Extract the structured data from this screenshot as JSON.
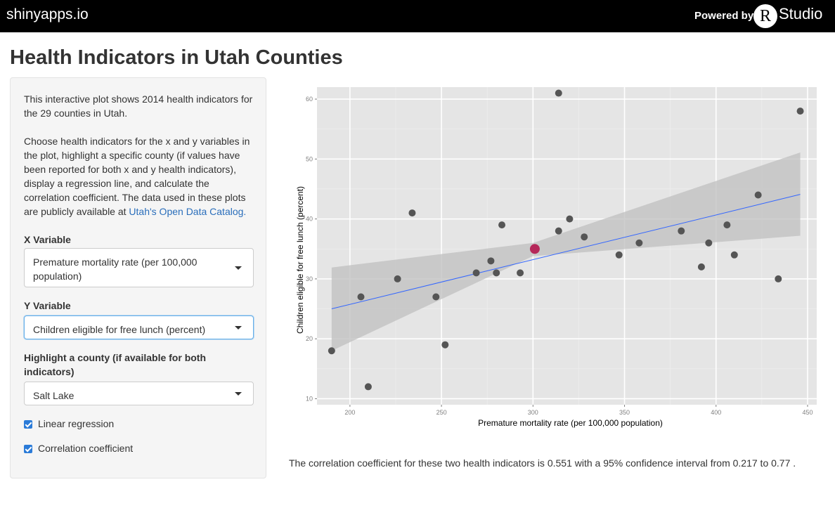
{
  "topbar": {
    "brand": "shinyapps.io",
    "powered_by": "Powered by",
    "logo_letter": "R",
    "logo_word": "Studio"
  },
  "page": {
    "title": "Health Indicators in Utah Counties"
  },
  "sidebar": {
    "intro": "This interactive plot shows 2014 health indicators for the 29 counties in Utah.",
    "description": "Choose health indicators for the x and y variables in the plot, highlight a specific county (if values have been reported for both x and y health indicators), display a regression line, and calculate the correlation coefficient. The data used in these plots are publicly available at",
    "link_text": "Utah's Open Data Catalog.",
    "x_label": "X Variable",
    "x_value": "Premature mortality rate (per 100,000 population)",
    "y_label": "Y Variable",
    "y_value": "Children eligible for free lunch (percent)",
    "county_label": "Highlight a county (if available for both indicators)",
    "county_value": "Salt Lake",
    "regression_label": "Linear regression",
    "regression_checked": true,
    "correlation_label": "Correlation coefficient",
    "correlation_checked": true
  },
  "colors": {
    "checkbox": "#2b7bd8",
    "link": "#2a6ebb",
    "panel_bg": "#e5e5e5",
    "point": "#555555",
    "highlight": "#b5285a",
    "regression_line": "#3366ff",
    "ci_band": "#bfbfbf"
  },
  "chart_data": {
    "type": "scatter",
    "xlabel": "Premature mortality rate (per 100,000 population)",
    "ylabel": "Children eligible for free lunch (percent)",
    "xlim": [
      182,
      455
    ],
    "ylim": [
      9,
      62
    ],
    "x_ticks": [
      200,
      250,
      300,
      350,
      400,
      450
    ],
    "y_ticks": [
      10,
      20,
      30,
      40,
      50,
      60
    ],
    "grid": true,
    "points": [
      {
        "x": 190,
        "y": 18
      },
      {
        "x": 206,
        "y": 27
      },
      {
        "x": 210,
        "y": 12
      },
      {
        "x": 226,
        "y": 30
      },
      {
        "x": 234,
        "y": 41
      },
      {
        "x": 247,
        "y": 27
      },
      {
        "x": 252,
        "y": 19
      },
      {
        "x": 269,
        "y": 31
      },
      {
        "x": 277,
        "y": 33
      },
      {
        "x": 280,
        "y": 31
      },
      {
        "x": 283,
        "y": 39
      },
      {
        "x": 293,
        "y": 31
      },
      {
        "x": 314,
        "y": 61
      },
      {
        "x": 314,
        "y": 38
      },
      {
        "x": 320,
        "y": 40
      },
      {
        "x": 328,
        "y": 37
      },
      {
        "x": 347,
        "y": 34
      },
      {
        "x": 358,
        "y": 36
      },
      {
        "x": 381,
        "y": 38
      },
      {
        "x": 392,
        "y": 32
      },
      {
        "x": 396,
        "y": 36
      },
      {
        "x": 406,
        "y": 39
      },
      {
        "x": 410,
        "y": 34
      },
      {
        "x": 423,
        "y": 44
      },
      {
        "x": 434,
        "y": 30
      },
      {
        "x": 446,
        "y": 58
      }
    ],
    "highlight_point": {
      "x": 301,
      "y": 35
    },
    "regression": {
      "x": [
        190,
        446
      ],
      "y": [
        25,
        44.1
      ]
    },
    "confidence_band": {
      "x": [
        190,
        300,
        446
      ],
      "upper": [
        31.9,
        36.0,
        51.1
      ],
      "lower": [
        18.0,
        33.8,
        37.2
      ]
    }
  },
  "result": {
    "correlation_text": "The correlation coefficient for these two health indicators is 0.551 with a 95% confidence interval from 0.217 to 0.77 ."
  }
}
